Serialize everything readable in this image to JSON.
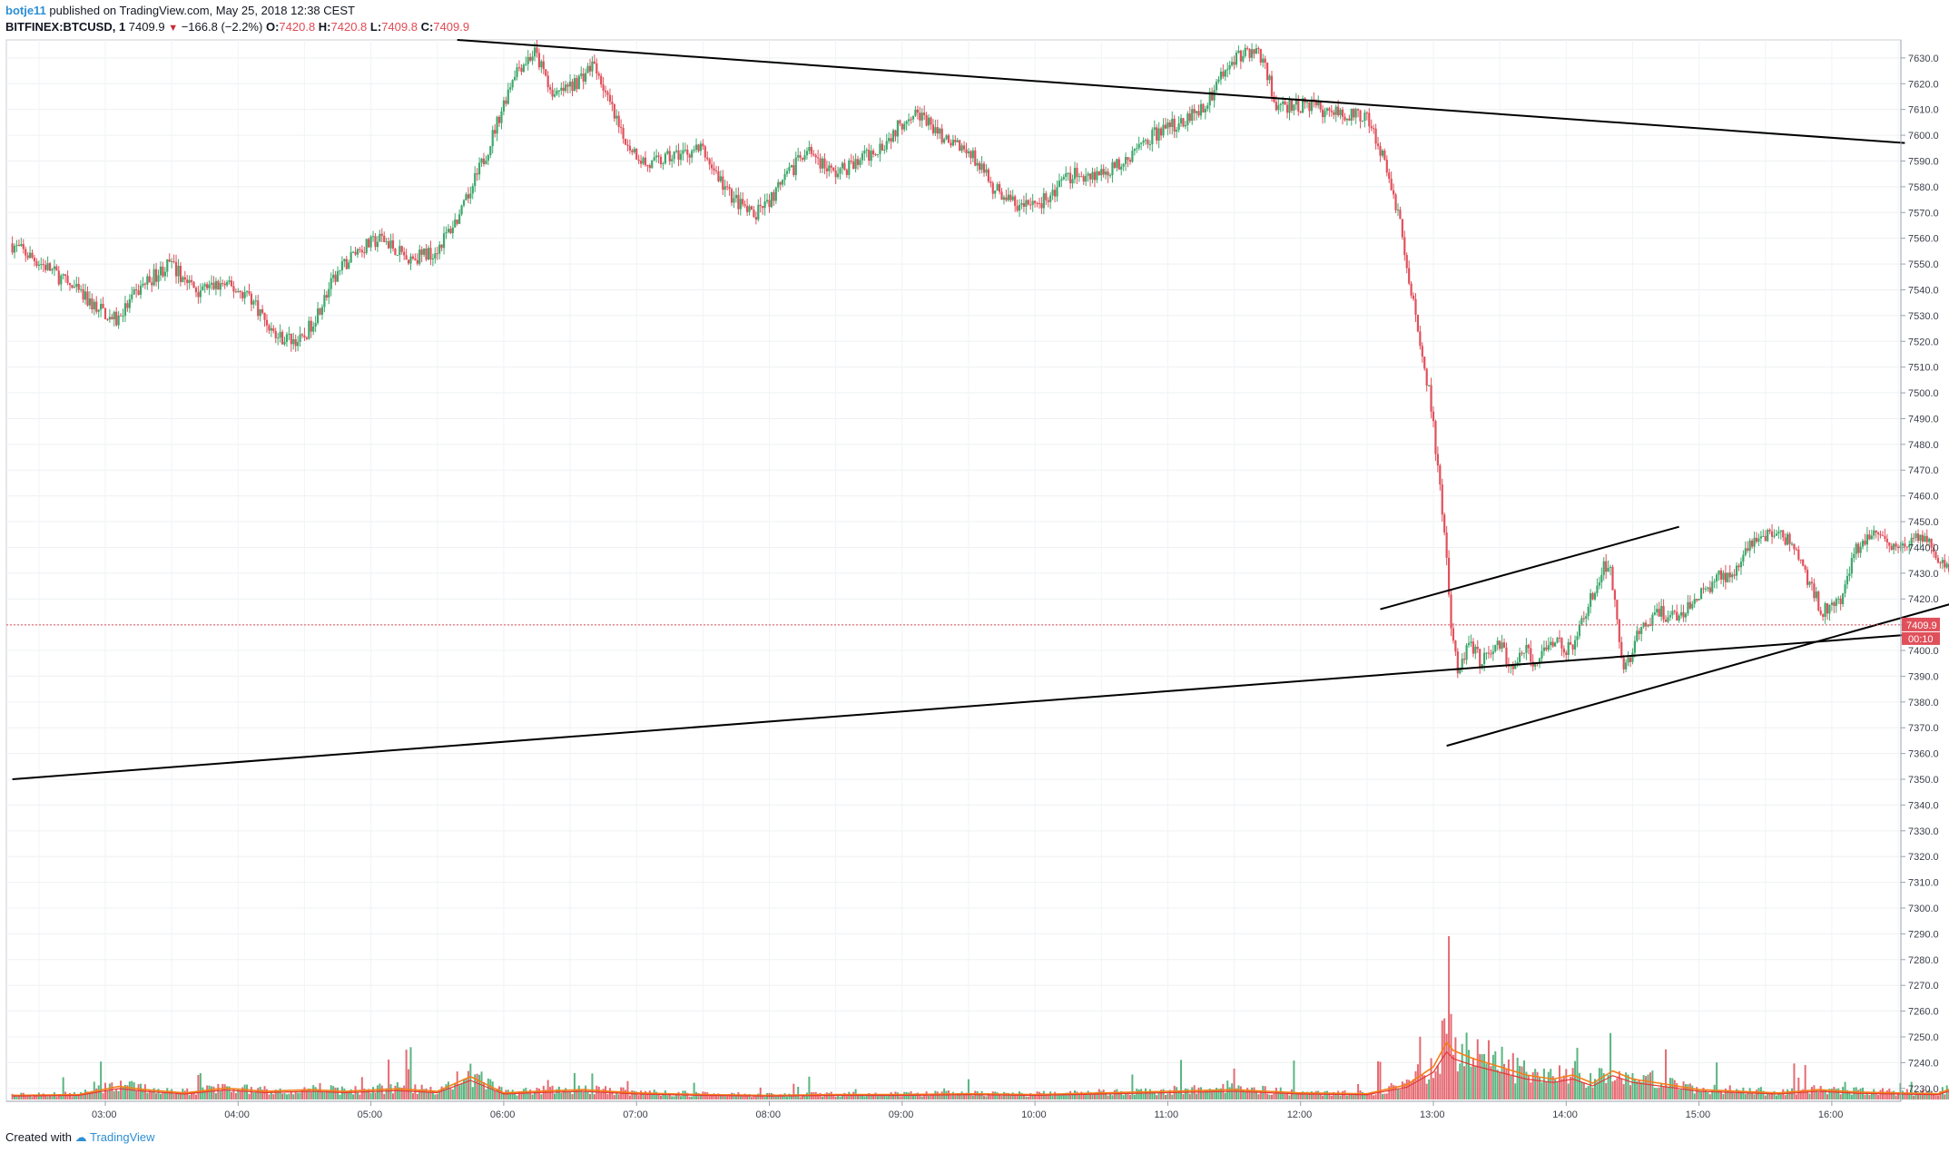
{
  "header": {
    "author": "botje11",
    "published": "published on TradingView.com, May 25, 2018 12:38 CEST",
    "symbol": "BITFINEX:BTCUSD, 1",
    "last": "7409.9",
    "change": "−166.8 (−2.2%)",
    "o_label": "O:",
    "o_value": "7420.8",
    "h_label": "H:",
    "h_value": "7420.8",
    "l_label": "L:",
    "l_value": "7409.8",
    "c_label": "C:",
    "c_value": "7409.9"
  },
  "footer": {
    "created_with": "Created with",
    "brand": "TradingView"
  },
  "colors": {
    "up": "#3da86b",
    "down": "#e0505b",
    "ma_orange": "#f57f17",
    "ma_red": "#e53935",
    "price_line": "#e0505b"
  },
  "chart_data": {
    "type": "candlestick",
    "y_min": 7225,
    "y_max": 7637,
    "y_ticks": [
      "7230.0",
      "7240.0",
      "7250.0",
      "7260.0",
      "7270.0",
      "7280.0",
      "7290.0",
      "7300.0",
      "7310.0",
      "7320.0",
      "7330.0",
      "7340.0",
      "7350.0",
      "7360.0",
      "7370.0",
      "7380.0",
      "7390.0",
      "7400.0",
      "7410.0",
      "7420.0",
      "7430.0",
      "7440.0",
      "7450.0",
      "7460.0",
      "7470.0",
      "7480.0",
      "7490.0",
      "7500.0",
      "7510.0",
      "7520.0",
      "7530.0",
      "7540.0",
      "7550.0",
      "7560.0",
      "7570.0",
      "7580.0",
      "7590.0",
      "7600.0",
      "7610.0",
      "7620.0",
      "7630.0"
    ],
    "x_ticks": [
      "03:00",
      "04:00",
      "05:00",
      "06:00",
      "07:00",
      "08:00",
      "09:00",
      "10:00",
      "11:00",
      "12:00",
      "13:00",
      "14:00",
      "15:00",
      "16:00"
    ],
    "last_price": "7409.9",
    "countdown": "00:10",
    "price_path": [
      [
        2.3,
        7558
      ],
      [
        2.6,
        7548
      ],
      [
        2.9,
        7535
      ],
      [
        3.1,
        7528
      ],
      [
        3.3,
        7542
      ],
      [
        3.5,
        7550
      ],
      [
        3.7,
        7540
      ],
      [
        3.9,
        7542
      ],
      [
        4.1,
        7538
      ],
      [
        4.3,
        7522
      ],
      [
        4.5,
        7520
      ],
      [
        4.75,
        7545
      ],
      [
        4.9,
        7555
      ],
      [
        5.1,
        7560
      ],
      [
        5.3,
        7552
      ],
      [
        5.5,
        7555
      ],
      [
        5.7,
        7570
      ],
      [
        5.9,
        7595
      ],
      [
        6.1,
        7625
      ],
      [
        6.25,
        7632
      ],
      [
        6.4,
        7615
      ],
      [
        6.55,
        7620
      ],
      [
        6.7,
        7628
      ],
      [
        6.9,
        7600
      ],
      [
        7.1,
        7588
      ],
      [
        7.3,
        7592
      ],
      [
        7.5,
        7595
      ],
      [
        7.7,
        7578
      ],
      [
        7.9,
        7568
      ],
      [
        8.1,
        7580
      ],
      [
        8.3,
        7595
      ],
      [
        8.5,
        7585
      ],
      [
        8.7,
        7590
      ],
      [
        8.9,
        7598
      ],
      [
        9.1,
        7610
      ],
      [
        9.3,
        7600
      ],
      [
        9.5,
        7595
      ],
      [
        9.7,
        7580
      ],
      [
        9.9,
        7572
      ],
      [
        10.1,
        7575
      ],
      [
        10.3,
        7585
      ],
      [
        10.5,
        7585
      ],
      [
        10.7,
        7590
      ],
      [
        10.9,
        7600
      ],
      [
        11.1,
        7605
      ],
      [
        11.3,
        7612
      ],
      [
        11.5,
        7630
      ],
      [
        11.7,
        7633
      ],
      [
        11.85,
        7610
      ],
      [
        12.05,
        7612
      ],
      [
        12.3,
        7608
      ],
      [
        12.5,
        7608
      ],
      [
        12.65,
        7590
      ],
      [
        12.75,
        7570
      ],
      [
        12.85,
        7540
      ],
      [
        12.92,
        7520
      ],
      [
        13.0,
        7495
      ],
      [
        13.05,
        7470
      ],
      [
        13.1,
        7448
      ],
      [
        13.15,
        7410
      ],
      [
        13.2,
        7390
      ],
      [
        13.28,
        7405
      ],
      [
        13.38,
        7395
      ],
      [
        13.5,
        7405
      ],
      [
        13.6,
        7392
      ],
      [
        13.7,
        7400
      ],
      [
        13.8,
        7395
      ],
      [
        13.9,
        7405
      ],
      [
        14.05,
        7400
      ],
      [
        14.2,
        7420
      ],
      [
        14.3,
        7432
      ],
      [
        14.35,
        7430
      ],
      [
        14.45,
        7392
      ],
      [
        14.55,
        7405
      ],
      [
        14.7,
        7415
      ],
      [
        14.85,
        7412
      ],
      [
        15.0,
        7420
      ],
      [
        15.15,
        7428
      ],
      [
        15.3,
        7430
      ],
      [
        15.45,
        7445
      ],
      [
        15.6,
        7445
      ],
      [
        15.75,
        7440
      ],
      [
        15.85,
        7425
      ],
      [
        15.95,
        7415
      ],
      [
        16.1,
        7420
      ],
      [
        16.2,
        7440
      ],
      [
        16.35,
        7445
      ],
      [
        16.5,
        7440
      ],
      [
        16.7,
        7445
      ],
      [
        16.9,
        7430
      ],
      [
        17.0,
        7395
      ],
      [
        17.1,
        7400
      ],
      [
        17.25,
        7425
      ],
      [
        17.35,
        7428
      ],
      [
        17.5,
        7425
      ],
      [
        17.62,
        7440
      ],
      [
        17.75,
        7448
      ],
      [
        17.85,
        7422
      ],
      [
        17.95,
        7420
      ],
      [
        18.05,
        7425
      ],
      [
        18.1,
        7410
      ]
    ],
    "volume_profile": [
      [
        2.3,
        5
      ],
      [
        2.8,
        6
      ],
      [
        3.1,
        16
      ],
      [
        3.3,
        12
      ],
      [
        3.6,
        8
      ],
      [
        3.9,
        14
      ],
      [
        4.2,
        10
      ],
      [
        4.55,
        12
      ],
      [
        4.8,
        10
      ],
      [
        5.2,
        13
      ],
      [
        5.5,
        10
      ],
      [
        5.75,
        28
      ],
      [
        6.0,
        8
      ],
      [
        6.25,
        10
      ],
      [
        6.6,
        12
      ],
      [
        7.0,
        8
      ],
      [
        7.5,
        6
      ],
      [
        8.0,
        5
      ],
      [
        8.5,
        6
      ],
      [
        9.0,
        6
      ],
      [
        9.5,
        7
      ],
      [
        10.0,
        6
      ],
      [
        10.5,
        8
      ],
      [
        11.0,
        10
      ],
      [
        11.5,
        12
      ],
      [
        12.0,
        8
      ],
      [
        12.5,
        7
      ],
      [
        12.8,
        18
      ],
      [
        13.0,
        40
      ],
      [
        13.1,
        70
      ],
      [
        13.15,
        60
      ],
      [
        13.3,
        50
      ],
      [
        13.5,
        40
      ],
      [
        13.7,
        30
      ],
      [
        13.9,
        25
      ],
      [
        14.05,
        30
      ],
      [
        14.2,
        20
      ],
      [
        14.35,
        35
      ],
      [
        14.5,
        25
      ],
      [
        14.7,
        20
      ],
      [
        15.0,
        12
      ],
      [
        15.3,
        10
      ],
      [
        15.6,
        8
      ],
      [
        15.9,
        12
      ],
      [
        16.2,
        9
      ],
      [
        16.5,
        8
      ],
      [
        16.8,
        7
      ],
      [
        17.0,
        20
      ],
      [
        17.2,
        15
      ],
      [
        17.45,
        10
      ],
      [
        17.7,
        8
      ],
      [
        18.0,
        6
      ],
      [
        18.1,
        5
      ]
    ],
    "annotations": {
      "trendlines": 4,
      "highlight": "ellipse"
    }
  }
}
